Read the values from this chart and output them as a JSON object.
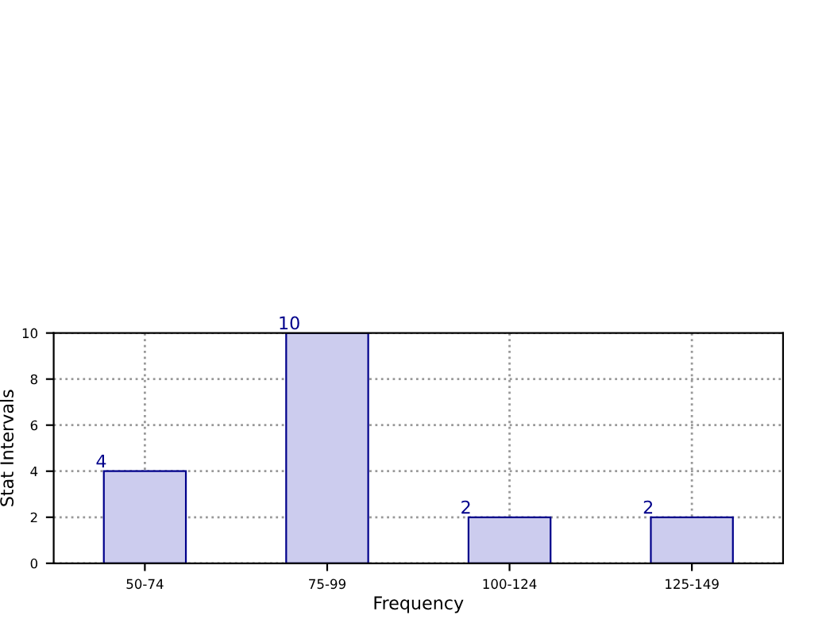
{
  "chart_data": {
    "type": "bar",
    "xlabel": "Frequency",
    "ylabel": "Stat Intervals",
    "categories": [
      "50-74",
      "75-99",
      "100-124",
      "125-149"
    ],
    "values": [
      4,
      10,
      2,
      2
    ],
    "color": "#ccccee",
    "ylim": [
      0,
      10
    ],
    "yticks": [
      0,
      2,
      4,
      6,
      8,
      10
    ],
    "grid": true,
    "data_labels": true
  }
}
